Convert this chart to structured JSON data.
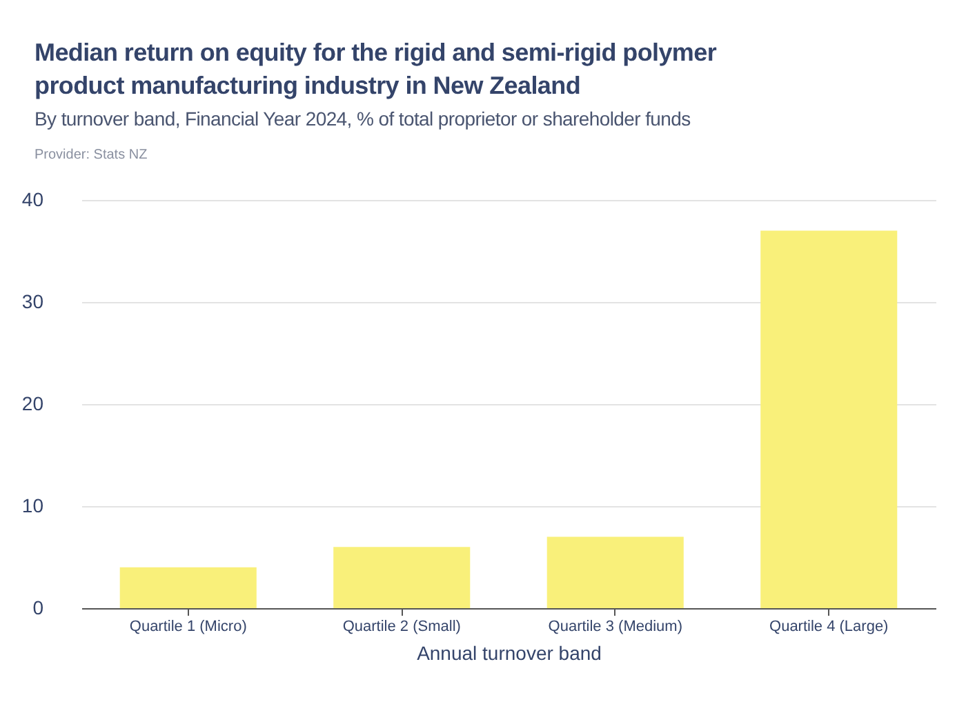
{
  "chart_data": {
    "type": "bar",
    "title": "Median return on equity for the rigid and semi-rigid polymer product manufacturing industry in New Zealand",
    "subtitle": "By turnover band, Financial Year 2024, % of total proprietor or shareholder funds",
    "annotations": [
      "Provider: Stats NZ"
    ],
    "xlabel": "Annual turnover band",
    "categories": [
      "Quartile 1 (Micro)",
      "Quartile 2 (Small)",
      "Quartile 3 (Medium)",
      "Quartile 4 (Large)"
    ],
    "values": [
      4,
      6,
      7,
      37
    ],
    "color": "#f9f07a",
    "ylim": [
      0,
      40
    ],
    "yticks": [
      0,
      10,
      20,
      30,
      40
    ],
    "grid": "y"
  }
}
